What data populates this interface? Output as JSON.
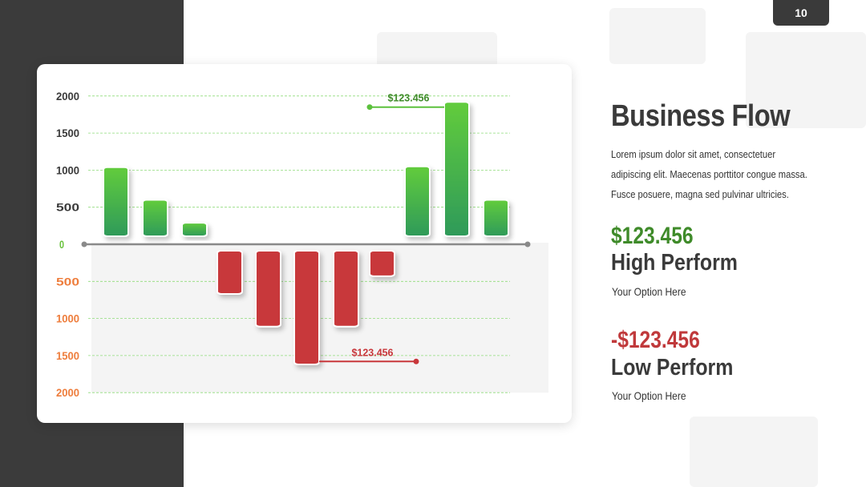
{
  "page_number": "10",
  "title": "Business Flow",
  "description": "Lorem ipsum dolor sit amet, consectetuer adipiscing elit. Maecenas porttitor congue massa. Fusce posuere, magna sed pulvinar ultricies.",
  "high": {
    "value": "$123.456",
    "label": "High Perform",
    "subtitle": "Your Option Here"
  },
  "low": {
    "value": "-$123.456",
    "label": "Low Perform",
    "subtitle": "Your Option Here"
  },
  "colors": {
    "positive_top": "#62cc3c",
    "positive_bottom": "#2e9a5a",
    "negative": "#c8373b",
    "positive_tick": "#3a3a3a",
    "zero_tick": "#68c23c",
    "negative_tick": "#ee7d3c",
    "dark_band": "#3b3b3b"
  },
  "chart_data": {
    "type": "bar",
    "ylim": [
      -2000,
      2000
    ],
    "y_ticks": [
      {
        "value": 2000,
        "label": "2000"
      },
      {
        "value": 1500,
        "label": "1500"
      },
      {
        "value": 1000,
        "label": "1000"
      },
      {
        "value": 500,
        "label": "500"
      },
      {
        "value": 0,
        "label": "0"
      },
      {
        "value": -500,
        "label": "500"
      },
      {
        "value": -1000,
        "label": "1000"
      },
      {
        "value": -1500,
        "label": "1500"
      },
      {
        "value": -2000,
        "label": "2000"
      }
    ],
    "values": [
      1040,
      600,
      290,
      -670,
      -1110,
      -1620,
      -1110,
      -430,
      1050,
      1920,
      600
    ],
    "grid": true,
    "annotations": [
      {
        "label": "$123.456",
        "bar_index": 9,
        "value": 1850,
        "direction": "left"
      },
      {
        "label": "$123.456",
        "bar_index": 5,
        "value": -1580,
        "direction": "right"
      }
    ]
  }
}
